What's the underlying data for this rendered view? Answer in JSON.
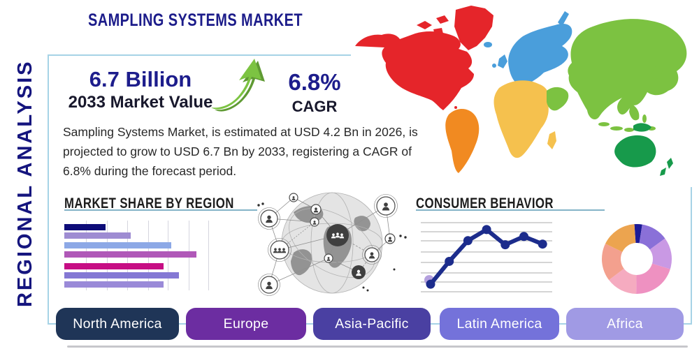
{
  "header": {
    "title": "SAMPLING SYSTEMS MARKET",
    "side_label": "REGIONAL ANALYSIS"
  },
  "stats": {
    "market_value": {
      "value": "6.7 Billion",
      "label": "2033 Market Value"
    },
    "cagr": {
      "value": "6.8%",
      "label": "CAGR"
    }
  },
  "description": "Sampling Systems Market, is estimated at USD 4.2 Bn in 2026, is projected to grow to USD 6.7 Bn by 2033, registering a CAGR of 6.8% during the forecast period.",
  "sections": {
    "market_share_heading": "MARKET SHARE BY REGION",
    "consumer_behavior_heading": "CONSUMER BEHAVIOR"
  },
  "regions": [
    {
      "label": "North America",
      "color": "#1f3557"
    },
    {
      "label": "Europe",
      "color": "#6c2da1"
    },
    {
      "label": "Asia-Pacific",
      "color": "#4a40a2"
    },
    {
      "label": "Latin America",
      "color": "#7472da"
    },
    {
      "label": "Africa",
      "color": "#a09ae4"
    }
  ],
  "map": {
    "colors": {
      "north_america": "#e5252a",
      "south_america": "#f18a21",
      "europe": "#4a9edb",
      "africa": "#f5c14e",
      "asia": "#7cc241",
      "oceania": "#179a4b"
    }
  },
  "accent": {
    "panel_border": "#a6d3e6",
    "heading_underline": "#84b4c8",
    "navy_text": "#1c1c8a",
    "arrow_green": "#7cc342"
  },
  "chart_data": [
    {
      "type": "bar",
      "title": "MARKET SHARE BY REGION",
      "orientation": "horizontal",
      "values": [
        31,
        50,
        81,
        100,
        75,
        87,
        75
      ],
      "unit": "relative bar length, % of longest bar (axis unlabeled)",
      "colors": [
        "#0d0c78",
        "#9e8cd2",
        "#8ca8e6",
        "#b058b8",
        "#c60d84",
        "#8478d4",
        "#9a8ad8"
      ],
      "grid": "vertical gridlines, no tick labels"
    },
    {
      "type": "line",
      "title": "CONSUMER BEHAVIOR",
      "x": [
        1,
        2,
        3,
        4,
        5,
        6,
        7
      ],
      "values": [
        11,
        44,
        74,
        90,
        68,
        80,
        69
      ],
      "unit": "relative height, % of plot area (axis unlabeled)",
      "color": "#1c2c8c",
      "marker_color": "#1c2c8c",
      "first_point_halo_color": "#b4a0de",
      "grid": "8 horizontal gridlines, no tick labels"
    },
    {
      "type": "pie",
      "donut": true,
      "title": "",
      "slices": [
        {
          "share_pct": 3.6,
          "color": "#1d1b96"
        },
        {
          "share_pct": 12.5,
          "color": "#8a70d8"
        },
        {
          "share_pct": 14.7,
          "color": "#c999e4"
        },
        {
          "share_pct": 20.6,
          "color": "#ee91c1"
        },
        {
          "share_pct": 14.4,
          "color": "#f5abc0"
        },
        {
          "share_pct": 17.5,
          "color": "#f3a08e"
        },
        {
          "share_pct": 16.7,
          "color": "#eca44f"
        }
      ]
    }
  ]
}
